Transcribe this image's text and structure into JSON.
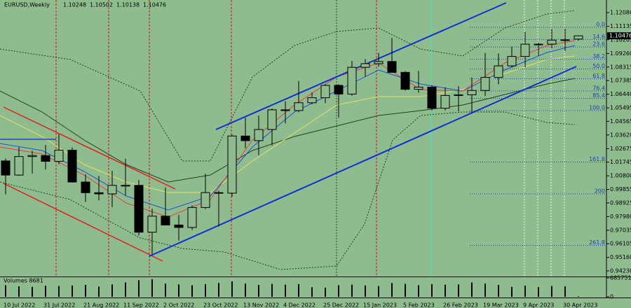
{
  "chart_data": [
    {
      "type": "candlestick",
      "symbol": "EURUSD,Weekly",
      "quote": [
        1.10248,
        1.10502,
        1.10138,
        1.10476
      ],
      "categories": [
        "10 Jul 2022",
        null,
        null,
        "31 Jul 2022",
        null,
        null,
        "21 Aug 2022",
        null,
        null,
        "11 Sep 2022",
        null,
        null,
        "2 Oct 2022",
        null,
        null,
        "23 Oct 2022",
        null,
        null,
        "13 Nov 2022",
        null,
        null,
        "4 Dec 2022",
        null,
        null,
        "25 Dec 2022",
        null,
        null,
        "15 Jan 2023",
        null,
        null,
        "5 Feb 2023",
        null,
        null,
        "26 Feb 2023",
        null,
        null,
        "19 Mar 2023",
        null,
        null,
        "9 Apr 2023",
        null,
        null,
        "30 Apr 2023",
        null
      ],
      "open": [
        1.0183,
        1.0085,
        1.0213,
        1.022,
        1.018,
        1.0257,
        1.0037,
        0.9963,
        0.9955,
        1.0014,
        1.0014,
        0.969,
        0.9801,
        0.974,
        0.9723,
        0.9861,
        0.9964,
        0.996,
        1.0355,
        1.0323,
        1.04,
        1.0536,
        1.0531,
        1.0585,
        1.062,
        1.0705,
        1.0645,
        1.083,
        1.0855,
        1.087,
        1.0795,
        1.0678,
        1.0693,
        1.0547,
        1.0635,
        1.064,
        1.067,
        1.076,
        1.084,
        1.0905,
        1.099,
        1.099,
        1.1018,
        1.10248
      ],
      "high": [
        1.02,
        1.0278,
        1.0254,
        1.0294,
        1.0368,
        1.0276,
        1.009,
        1.0079,
        1.0114,
        1.0198,
        1.0051,
        0.9853,
        0.9999,
        0.9809,
        0.9876,
        1.0094,
        0.9977,
        1.0365,
        1.0481,
        1.0497,
        1.0545,
        1.0595,
        1.0736,
        1.0656,
        1.0713,
        1.0714,
        1.0874,
        1.0887,
        1.0929,
        1.1033,
        1.0804,
        1.0805,
        1.0705,
        1.0692,
        1.07,
        1.076,
        1.093,
        1.0925,
        1.0973,
        1.1075,
        1.1,
        1.1095,
        1.1097,
        1.10502
      ],
      "low": [
        0.9952,
        1.008,
        1.0096,
        1.0123,
        1.016,
        1.0033,
        0.99,
        0.991,
        0.9864,
        0.9944,
        0.9668,
        0.9536,
        0.9738,
        0.9632,
        0.9705,
        0.985,
        0.973,
        0.9935,
        1.0271,
        1.0222,
        1.029,
        1.0443,
        1.052,
        1.0575,
        1.0582,
        1.0483,
        1.0633,
        1.0766,
        1.0835,
        1.0795,
        1.0669,
        1.0655,
        1.0533,
        1.0532,
        1.0525,
        1.0516,
        1.0632,
        1.0713,
        1.083,
        1.083,
        1.091,
        1.096,
        1.0942,
        1.10138
      ],
      "close": [
        1.0085,
        1.0213,
        1.022,
        1.018,
        1.0257,
        1.0037,
        0.9963,
        0.9955,
        1.0014,
        1.0014,
        0.969,
        0.9801,
        0.974,
        0.9723,
        0.9861,
        0.9964,
        0.996,
        1.0355,
        1.0323,
        1.04,
        1.0536,
        1.0531,
        1.0585,
        1.062,
        1.0705,
        1.0645,
        1.083,
        1.0855,
        1.087,
        1.0795,
        1.0678,
        1.0693,
        1.0547,
        1.0635,
        1.064,
        1.067,
        1.076,
        1.084,
        1.0905,
        1.099,
        1.099,
        1.1018,
        1.102,
        1.10476
      ],
      "up_color": "#8fbc8f",
      "down_color": "#000000",
      "ylim": [
        0.9384,
        1.1271
      ],
      "yticks": [
        {
          "value": 1.1208,
          "label": "1.12080"
        },
        {
          "value": 1.11135,
          "label": "1.11135"
        },
        {
          "value": 1.10205,
          "label": "1.10205"
        },
        {
          "value": 1.0926,
          "label": "1.09260"
        },
        {
          "value": 1.08315,
          "label": "1.08315"
        },
        {
          "value": 1.07385,
          "label": "1.07385"
        },
        {
          "value": 1.0644,
          "label": "1.06440"
        },
        {
          "value": 1.05495,
          "label": "1.05495"
        },
        {
          "value": 1.04565,
          "label": "1.04565"
        },
        {
          "value": 1.0362,
          "label": "1.03620"
        },
        {
          "value": 1.02675,
          "label": "1.02675"
        },
        {
          "value": 1.01745,
          "label": "1.01745"
        },
        {
          "value": 1.008,
          "label": "1.00800"
        },
        {
          "value": 0.99855,
          "label": "0.99855"
        },
        {
          "value": 0.98925,
          "label": "0.98925"
        },
        {
          "value": 0.9798,
          "label": "0.97980"
        },
        {
          "value": 0.97035,
          "label": "0.97035"
        },
        {
          "value": 0.96105,
          "label": "0.96105"
        },
        {
          "value": 0.9516,
          "label": "0.95160"
        },
        {
          "value": 0.9423,
          "label": "0.94230"
        }
      ],
      "fib_levels": [
        {
          "label": "0.0",
          "value": 1.11064
        },
        {
          "label": "14.6",
          "value": 1.10223
        },
        {
          "label": "23.6",
          "value": 1.09705
        },
        {
          "label": "38.2",
          "value": 1.08865
        },
        {
          "label": "50.0",
          "value": 1.08186
        },
        {
          "label": "61.8",
          "value": 1.07506
        },
        {
          "label": "76.4",
          "value": 1.06666
        },
        {
          "label": "85.4",
          "value": 1.06148
        },
        {
          "label": "100.0",
          "value": 1.05307
        },
        {
          "label": "161.8",
          "value": 1.01749
        },
        {
          "label": "200",
          "value": 0.9955
        },
        {
          "label": "261.8",
          "value": 0.95992
        }
      ],
      "fib_color": "#1a3fb0"
    },
    {
      "type": "bar",
      "title": "Volumes 8681",
      "color": "#000000",
      "values": [
        420000,
        380000,
        360000,
        400000,
        390000,
        410000,
        430000,
        370000,
        450000,
        520000,
        600000,
        640000,
        480000,
        450000,
        420000,
        460000,
        500000,
        560000,
        480000,
        430000,
        470000,
        440000,
        460000,
        350000,
        330000,
        420000,
        440000,
        410000,
        390000,
        500000,
        470000,
        420000,
        460000,
        440000,
        450000,
        520000,
        480000,
        430000,
        360000,
        400000,
        350000,
        390000,
        380000,
        20000
      ],
      "ylim": [
        0,
        685751
      ],
      "yticks": [
        685751,
        0
      ]
    }
  ]
}
